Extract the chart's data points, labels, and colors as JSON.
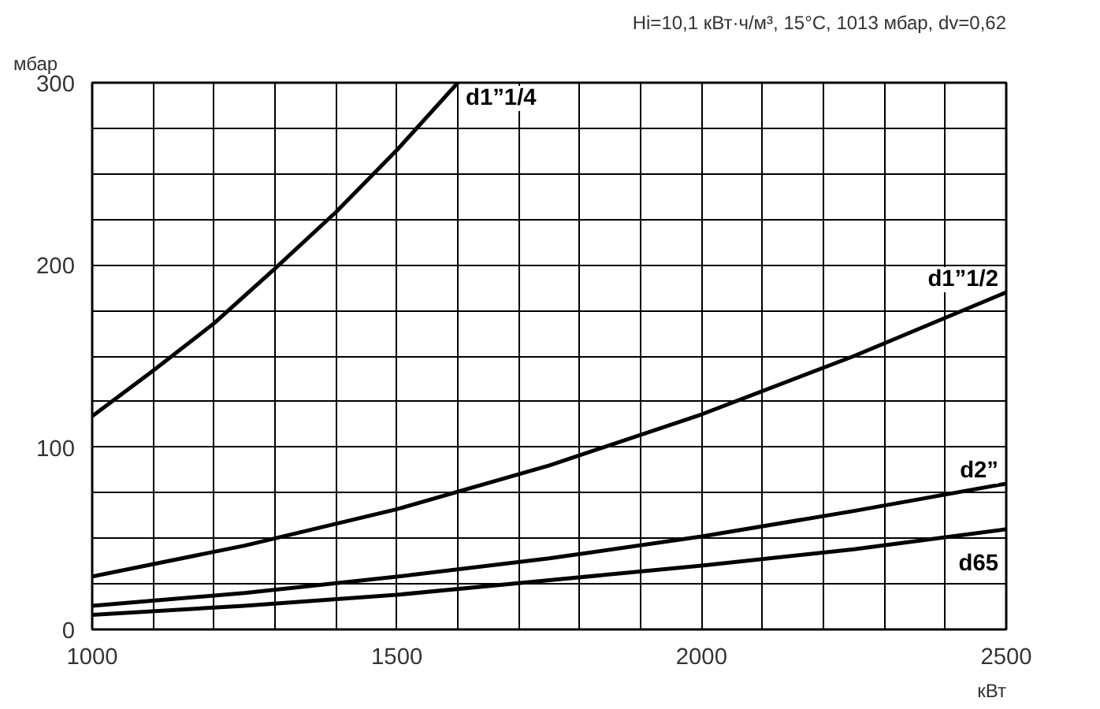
{
  "chart_data": {
    "type": "line",
    "subtitle": "Hi=10,1 кВт·ч/м³, 15°C, 1013 мбар, dv=0,62",
    "xlabel": "кВт",
    "ylabel": "мбар",
    "xlim": [
      1000,
      2500
    ],
    "ylim": [
      0,
      300
    ],
    "xticks": [
      1000,
      {
        "value": 1100,
        "label": null
      },
      {
        "value": 1200,
        "label": null
      },
      {
        "value": 1300,
        "label": null
      },
      {
        "value": 1400,
        "label": null
      },
      1500,
      {
        "value": 1600,
        "label": null
      },
      {
        "value": 1700,
        "label": null
      },
      {
        "value": 1800,
        "label": null
      },
      {
        "value": 1900,
        "label": null
      },
      2000,
      {
        "value": 2100,
        "label": null
      },
      {
        "value": 2200,
        "label": null
      },
      {
        "value": 2300,
        "label": null
      },
      {
        "value": 2400,
        "label": null
      },
      2500
    ],
    "yticks": [
      0,
      {
        "value": 25,
        "label": null
      },
      {
        "value": 50,
        "label": null
      },
      {
        "value": 75,
        "label": null
      },
      100,
      {
        "value": 125,
        "label": null
      },
      {
        "value": 150,
        "label": null
      },
      {
        "value": 175,
        "label": null
      },
      200,
      {
        "value": 225,
        "label": null
      },
      {
        "value": 250,
        "label": null
      },
      {
        "value": 275,
        "label": null
      },
      300
    ],
    "grid": true,
    "line_style": "solid",
    "series": [
      {
        "name": "d1”1/4",
        "color": "#000000",
        "x": [
          1000,
          1100,
          1200,
          1300,
          1400,
          1500,
          1600
        ],
        "values": [
          117,
          142,
          168,
          198,
          229,
          263,
          300
        ]
      },
      {
        "name": "d1”1/2",
        "color": "#000000",
        "x": [
          1000,
          1250,
          1500,
          1750,
          2000,
          2250,
          2500
        ],
        "values": [
          29,
          46,
          66,
          90,
          118,
          150,
          185
        ]
      },
      {
        "name": "d2”",
        "color": "#000000",
        "x": [
          1000,
          1250,
          1500,
          1750,
          2000,
          2250,
          2500
        ],
        "values": [
          13,
          20,
          29,
          39,
          51,
          65,
          80
        ]
      },
      {
        "name": "d65",
        "color": "#000000",
        "x": [
          1000,
          1250,
          1500,
          1750,
          2000,
          2250,
          2500
        ],
        "values": [
          8,
          13,
          19,
          27,
          35,
          44,
          55
        ]
      }
    ]
  }
}
